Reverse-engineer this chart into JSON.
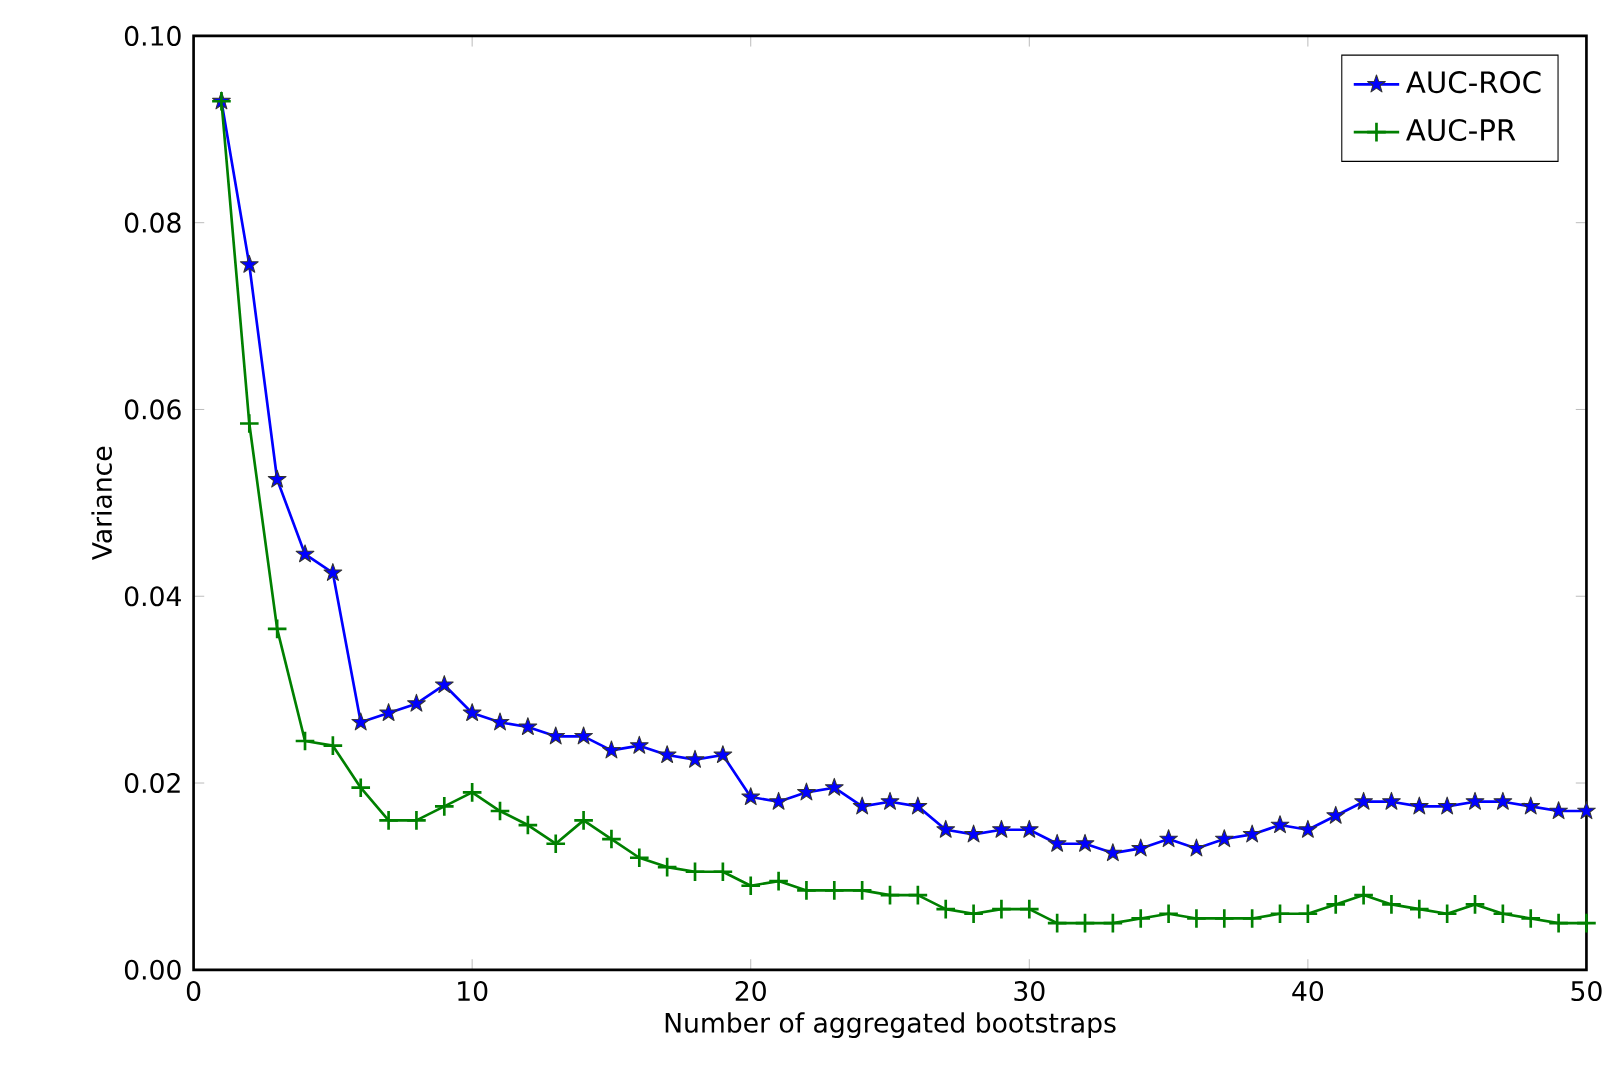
{
  "chart_data": {
    "type": "line",
    "xlabel": "Number of aggregated bootstraps",
    "ylabel": "Variance",
    "x": [
      1,
      2,
      3,
      4,
      5,
      6,
      7,
      8,
      9,
      10,
      11,
      12,
      13,
      14,
      15,
      16,
      17,
      18,
      19,
      20,
      21,
      22,
      23,
      24,
      25,
      26,
      27,
      28,
      29,
      30,
      31,
      32,
      33,
      34,
      35,
      36,
      37,
      38,
      39,
      40,
      41,
      42,
      43,
      44,
      45,
      46,
      47,
      48,
      49,
      50
    ],
    "series": [
      {
        "name": "AUC-ROC",
        "color": "#0000ff",
        "marker": "star",
        "values": [
          0.093,
          0.0755,
          0.0525,
          0.0445,
          0.0425,
          0.0265,
          0.0275,
          0.0285,
          0.0305,
          0.0275,
          0.0265,
          0.026,
          0.025,
          0.025,
          0.0235,
          0.024,
          0.023,
          0.0225,
          0.023,
          0.0185,
          0.018,
          0.019,
          0.0195,
          0.0175,
          0.018,
          0.0175,
          0.015,
          0.0145,
          0.015,
          0.015,
          0.0135,
          0.0135,
          0.0125,
          0.013,
          0.014,
          0.013,
          0.014,
          0.0145,
          0.0155,
          0.015,
          0.0165,
          0.018,
          0.018,
          0.0175,
          0.0175,
          0.018,
          0.018,
          0.0175,
          0.017,
          0.017
        ]
      },
      {
        "name": "AUC-PR",
        "color": "#008000",
        "marker": "cross",
        "values": [
          0.093,
          0.0585,
          0.0365,
          0.0245,
          0.024,
          0.0195,
          0.016,
          0.016,
          0.0175,
          0.019,
          0.017,
          0.0155,
          0.0135,
          0.016,
          0.014,
          0.012,
          0.011,
          0.0105,
          0.0105,
          0.009,
          0.0095,
          0.0085,
          0.0085,
          0.0085,
          0.008,
          0.008,
          0.0065,
          0.006,
          0.0065,
          0.0065,
          0.005,
          0.005,
          0.005,
          0.0055,
          0.006,
          0.0055,
          0.0055,
          0.0055,
          0.006,
          0.006,
          0.007,
          0.008,
          0.007,
          0.0065,
          0.006,
          0.007,
          0.006,
          0.0055,
          0.005,
          0.005
        ]
      }
    ],
    "xlim": [
      0,
      50
    ],
    "ylim": [
      0,
      0.1
    ],
    "xticks": [
      0,
      10,
      20,
      30,
      40,
      50
    ],
    "yticks": [
      {
        "value": 0,
        "label": "0.00"
      },
      {
        "value": 0.02,
        "label": "0.02"
      },
      {
        "value": 0.04,
        "label": "0.04"
      },
      {
        "value": 0.06,
        "label": "0.06"
      },
      {
        "value": 0.08,
        "label": "0.08"
      },
      {
        "value": 0.1,
        "label": "0.10"
      }
    ],
    "legend": "top right",
    "grid": false
  }
}
